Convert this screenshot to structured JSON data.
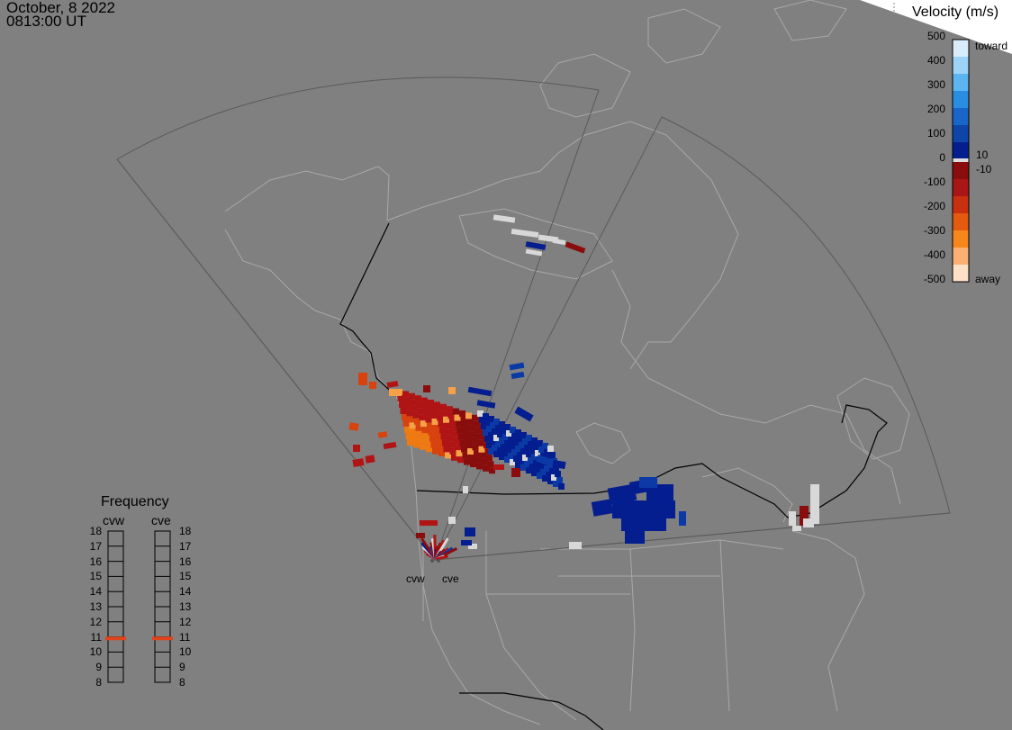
{
  "header": {
    "date": "October, 8 2022",
    "time": "0813:00 UT"
  },
  "velocity_scale": {
    "title": "Velocity (m/s)",
    "ticks": [
      "500",
      "400",
      "300",
      "200",
      "100",
      "0",
      "-100",
      "-200",
      "-300",
      "-400",
      "-500"
    ],
    "inner_positive": "10",
    "inner_negative": "-10",
    "toward_label": "toward",
    "away_label": "away",
    "colors_toward": [
      "#d8ecfa",
      "#9cd3f7",
      "#5cb4f0",
      "#2b8de0",
      "#1a66c8",
      "#0e46a8",
      "#041e8f"
    ],
    "colors_away": [
      "#8a0d0d",
      "#a81616",
      "#c83010",
      "#e45a10",
      "#f7861c",
      "#fab072",
      "#fde0c8"
    ]
  },
  "frequency_panel": {
    "title": "Frequency",
    "radars": [
      "cvw",
      "cve"
    ],
    "levels": [
      "18",
      "17",
      "16",
      "15",
      "14",
      "13",
      "12",
      "11",
      "10",
      "9",
      "8"
    ],
    "cvw_mhz": 10.9,
    "cve_mhz": 10.9,
    "marker_color": "#e0441c"
  },
  "sites": {
    "west_label": "cvw",
    "east_label": "cve"
  },
  "colors": {
    "background": "#808080",
    "land_outline": "#a8a8a8",
    "fov_outline": "#5a5a5a",
    "ground_scatter": "#d8d8d8"
  }
}
